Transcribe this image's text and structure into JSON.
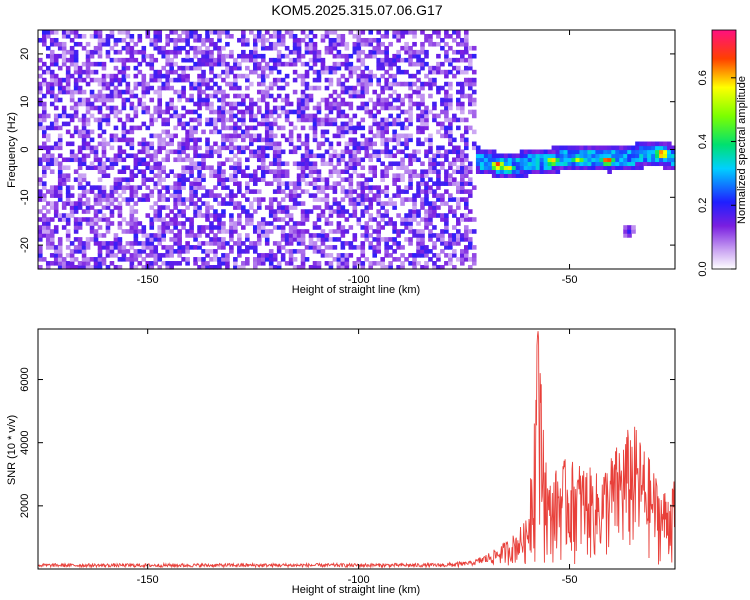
{
  "title": "KOM5.2025.315.07.06.G17",
  "chart_data": [
    {
      "type": "heatmap",
      "xlabel": "Height of straight line (km)",
      "ylabel": "Frequency (Hz)",
      "xlim": [
        -176,
        -25
      ],
      "ylim": [
        -25,
        25
      ],
      "xticks": [
        -150,
        -100,
        -50
      ],
      "yticks": [
        -20,
        -10,
        0,
        10,
        20
      ],
      "noise_region_x": [
        -176,
        -72
      ],
      "noise_level": [
        0.05,
        0.2
      ],
      "signal": {
        "x_range": [
          -72,
          -25
        ],
        "frequency_path": [
          {
            "x": -72,
            "f": -2.0
          },
          {
            "x": -65,
            "f": -3.5
          },
          {
            "x": -58,
            "f": -2.5
          },
          {
            "x": -50,
            "f": -1.8
          },
          {
            "x": -40,
            "f": -2.0
          },
          {
            "x": -30,
            "f": -0.8
          },
          {
            "x": -25,
            "f": -1.5
          }
        ],
        "peaks": [
          {
            "x": -67,
            "f": -3.2,
            "amplitude": 0.72
          },
          {
            "x": -64.5,
            "f": -3.8,
            "amplitude": 0.6
          },
          {
            "x": -54,
            "f": -2.3,
            "amplitude": 0.62
          },
          {
            "x": -48,
            "f": -2.0,
            "amplitude": 0.55
          },
          {
            "x": -41,
            "f": -2.2,
            "amplitude": 0.7
          },
          {
            "x": -28,
            "f": -0.8,
            "amplitude": 0.72
          }
        ],
        "isolated_blob": {
          "x": -36,
          "f": -17,
          "amplitude": 0.2
        }
      },
      "colorbar": {
        "label": "Normalized spectral amplitude",
        "range": [
          0,
          0.75
        ],
        "ticks": [
          0.0,
          0.2,
          0.4,
          0.6
        ]
      }
    },
    {
      "type": "line",
      "xlabel": "Height of straight line (km)",
      "ylabel": "SNR (10 * v/v)",
      "xlim": [
        -176,
        -25
      ],
      "ylim": [
        0,
        7600
      ],
      "xticks": [
        -150,
        -100,
        -50
      ],
      "yticks": [
        2000,
        4000,
        6000
      ],
      "color": "#e8403a",
      "series": [
        {
          "name": "",
          "envelope": [
            {
              "x": -176,
              "y": 150
            },
            {
              "x": -80,
              "y": 160
            },
            {
              "x": -73,
              "y": 250
            },
            {
              "x": -68,
              "y": 600
            },
            {
              "x": -64,
              "y": 1000
            },
            {
              "x": -60,
              "y": 1600
            },
            {
              "x": -57.5,
              "y": 7600
            },
            {
              "x": -55,
              "y": 2700
            },
            {
              "x": -52,
              "y": 3500
            },
            {
              "x": -47,
              "y": 3400
            },
            {
              "x": -43,
              "y": 3000
            },
            {
              "x": -39,
              "y": 3900
            },
            {
              "x": -35,
              "y": 4700
            },
            {
              "x": -31,
              "y": 3500
            },
            {
              "x": -28,
              "y": 2500
            },
            {
              "x": -25,
              "y": 2800
            }
          ]
        }
      ]
    }
  ]
}
